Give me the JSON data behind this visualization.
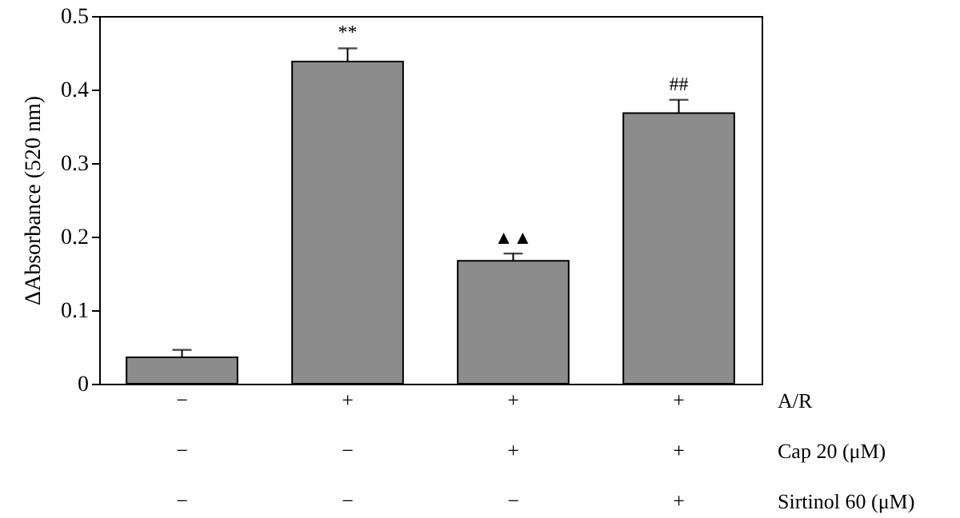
{
  "chart_data": {
    "type": "bar",
    "ylabel": "ΔAbsorbance (520 nm)",
    "categories": [
      "−\n−\n−",
      "+\n−\n−",
      "+\n+\n−",
      "+\n+\n+"
    ],
    "values": [
      0.036,
      0.438,
      0.167,
      0.368
    ],
    "errors": [
      0.01,
      0.018,
      0.01,
      0.018
    ],
    "color": "#8c8c8c",
    "ylim": [
      0,
      0.5
    ],
    "yticks": [
      {
        "value": 0,
        "label": "0"
      },
      0.1,
      0.2,
      0.3,
      0.4,
      0.5
    ],
    "grid": false,
    "value_labels": [
      null,
      "**",
      "▲▲",
      "##"
    ],
    "annotations": [
      "A/R",
      "Cap 20 (μM)",
      "Sirtinol 60 (μM)"
    ]
  }
}
